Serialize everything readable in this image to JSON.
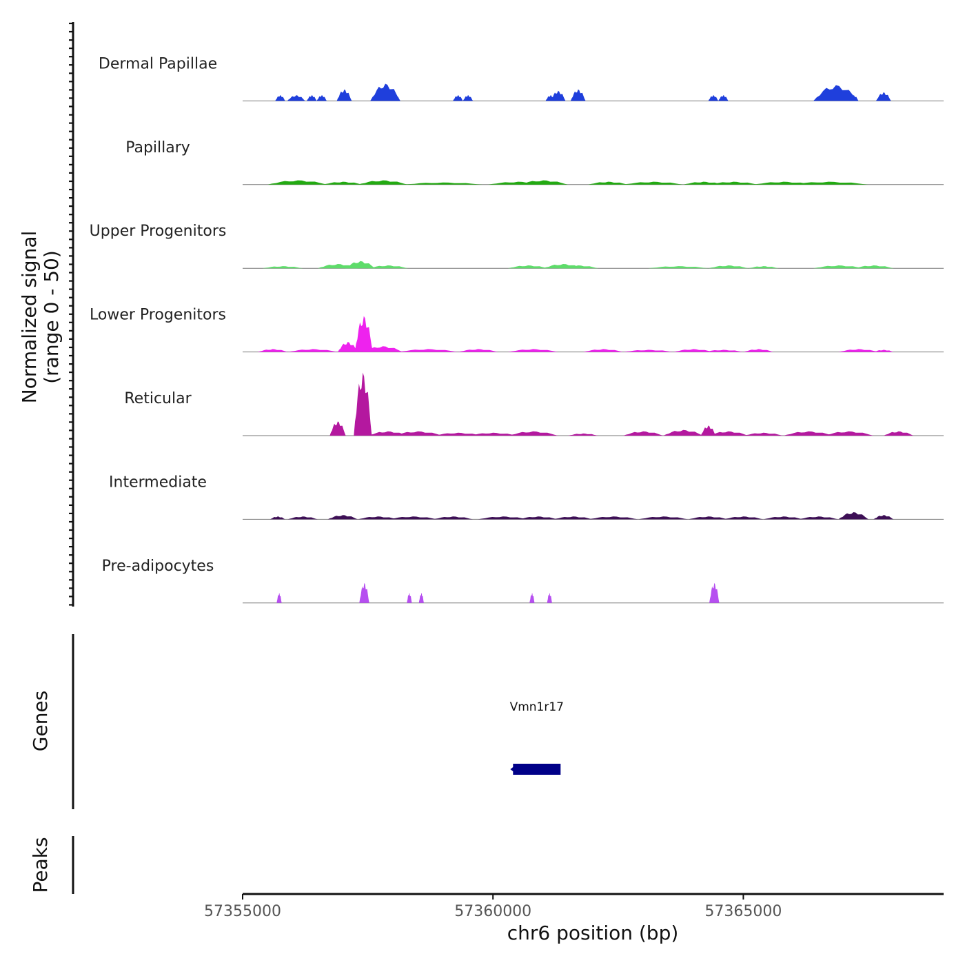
{
  "chart_data": {
    "type": "area",
    "title": "",
    "ylabel_line1": "Normalized signal",
    "ylabel_line2": "(range 0 - 50)",
    "ylim": [
      0,
      50
    ],
    "xlabel": "chr6 position (bp)",
    "xlim": [
      57355000,
      57369000
    ],
    "xticks": [
      57355000,
      57360000,
      57365000
    ],
    "xtick_labels": [
      "57355000",
      "57360000",
      "57365000"
    ],
    "tracks": [
      {
        "name": "Dermal Papillae",
        "color": "#1f3fdc",
        "peaks": [
          [
            57355750,
            4,
            100
          ],
          [
            57356070,
            4,
            180
          ],
          [
            57356380,
            4,
            100
          ],
          [
            57356580,
            4,
            100
          ],
          [
            57357030,
            8,
            150
          ],
          [
            57357850,
            12,
            300
          ],
          [
            57358050,
            4,
            100
          ],
          [
            57359300,
            4,
            100
          ],
          [
            57359500,
            4,
            100
          ],
          [
            57361150,
            4,
            100
          ],
          [
            57361300,
            7,
            150
          ],
          [
            57361700,
            8,
            150
          ],
          [
            57364400,
            4,
            100
          ],
          [
            57364600,
            4,
            100
          ],
          [
            57366850,
            11,
            450
          ],
          [
            57367200,
            4,
            100
          ],
          [
            57367800,
            6,
            150
          ]
        ]
      },
      {
        "name": "Papillary",
        "color": "#22aa11",
        "peaks": [
          [
            57356100,
            3,
            600
          ],
          [
            57357000,
            2,
            400
          ],
          [
            57357800,
            3,
            500
          ],
          [
            57359000,
            1.5,
            800
          ],
          [
            57360500,
            2,
            600
          ],
          [
            57361000,
            3,
            500
          ],
          [
            57362300,
            2,
            400
          ],
          [
            57363200,
            2,
            600
          ],
          [
            57364200,
            2,
            400
          ],
          [
            57364800,
            2,
            500
          ],
          [
            57365800,
            2,
            600
          ],
          [
            57366700,
            2,
            800
          ]
        ]
      },
      {
        "name": "Upper Progenitors",
        "color": "#5edc6a",
        "peaks": [
          [
            57355800,
            1.5,
            400
          ],
          [
            57356900,
            3,
            400
          ],
          [
            57357350,
            5,
            300
          ],
          [
            57357900,
            2,
            400
          ],
          [
            57360700,
            2,
            400
          ],
          [
            57361400,
            3,
            400
          ],
          [
            57361700,
            2,
            400
          ],
          [
            57363700,
            1.5,
            600
          ],
          [
            57364700,
            2,
            400
          ],
          [
            57365400,
            1.5,
            300
          ],
          [
            57366900,
            2,
            500
          ],
          [
            57367600,
            2,
            400
          ]
        ]
      },
      {
        "name": "Lower Progenitors",
        "color": "#ee22ee",
        "peaks": [
          [
            57355600,
            2,
            300
          ],
          [
            57356400,
            2,
            500
          ],
          [
            57357100,
            7,
            200
          ],
          [
            57357420,
            25,
            180
          ],
          [
            57357800,
            4,
            400
          ],
          [
            57358700,
            2,
            600
          ],
          [
            57359700,
            2,
            400
          ],
          [
            57360800,
            2,
            500
          ],
          [
            57362200,
            2,
            400
          ],
          [
            57363100,
            1.5,
            500
          ],
          [
            57364000,
            2,
            400
          ],
          [
            57364600,
            1.5,
            400
          ],
          [
            57365300,
            2,
            300
          ],
          [
            57367300,
            2,
            400
          ],
          [
            57367800,
            1.5,
            200
          ]
        ]
      },
      {
        "name": "Reticular",
        "color": "#b4189f",
        "peaks": [
          [
            57356900,
            10,
            160
          ],
          [
            57357400,
            44,
            180
          ],
          [
            57357900,
            3,
            400
          ],
          [
            57358500,
            3,
            500
          ],
          [
            57359300,
            2,
            500
          ],
          [
            57360000,
            2,
            500
          ],
          [
            57360800,
            3,
            500
          ],
          [
            57361800,
            1.5,
            300
          ],
          [
            57363000,
            3,
            400
          ],
          [
            57363800,
            4,
            400
          ],
          [
            57364300,
            7,
            150
          ],
          [
            57364700,
            3,
            400
          ],
          [
            57365400,
            2,
            400
          ],
          [
            57366300,
            3,
            500
          ],
          [
            57367100,
            3,
            500
          ],
          [
            57368100,
            3,
            300
          ]
        ]
      },
      {
        "name": "Intermediate",
        "color": "#3d0f55",
        "peaks": [
          [
            57355700,
            2,
            150
          ],
          [
            57356200,
            2,
            300
          ],
          [
            57357000,
            3,
            300
          ],
          [
            57357700,
            2,
            400
          ],
          [
            57358400,
            2,
            500
          ],
          [
            57359200,
            2,
            400
          ],
          [
            57360200,
            2,
            500
          ],
          [
            57360900,
            2,
            400
          ],
          [
            57361600,
            2,
            400
          ],
          [
            57362400,
            2,
            500
          ],
          [
            57363400,
            2,
            500
          ],
          [
            57364300,
            2,
            400
          ],
          [
            57365000,
            2,
            400
          ],
          [
            57365800,
            2,
            400
          ],
          [
            57366500,
            2,
            400
          ],
          [
            57367200,
            5,
            300
          ],
          [
            57367800,
            3,
            200
          ]
        ]
      },
      {
        "name": "Pre-adipocytes",
        "color": "#b64ff0",
        "peaks": [
          [
            57355730,
            7,
            50
          ],
          [
            57357430,
            14,
            100
          ],
          [
            57358330,
            7,
            50
          ],
          [
            57358570,
            7,
            50
          ],
          [
            57360780,
            7,
            50
          ],
          [
            57361130,
            7,
            50
          ],
          [
            57364420,
            14,
            100
          ]
        ]
      }
    ],
    "genes": [
      {
        "name": "Vmn1r17",
        "start": 57360400,
        "end": 57361350,
        "strand": "-"
      }
    ],
    "side_labels": {
      "genes": "Genes",
      "peaks": "Peaks"
    }
  }
}
